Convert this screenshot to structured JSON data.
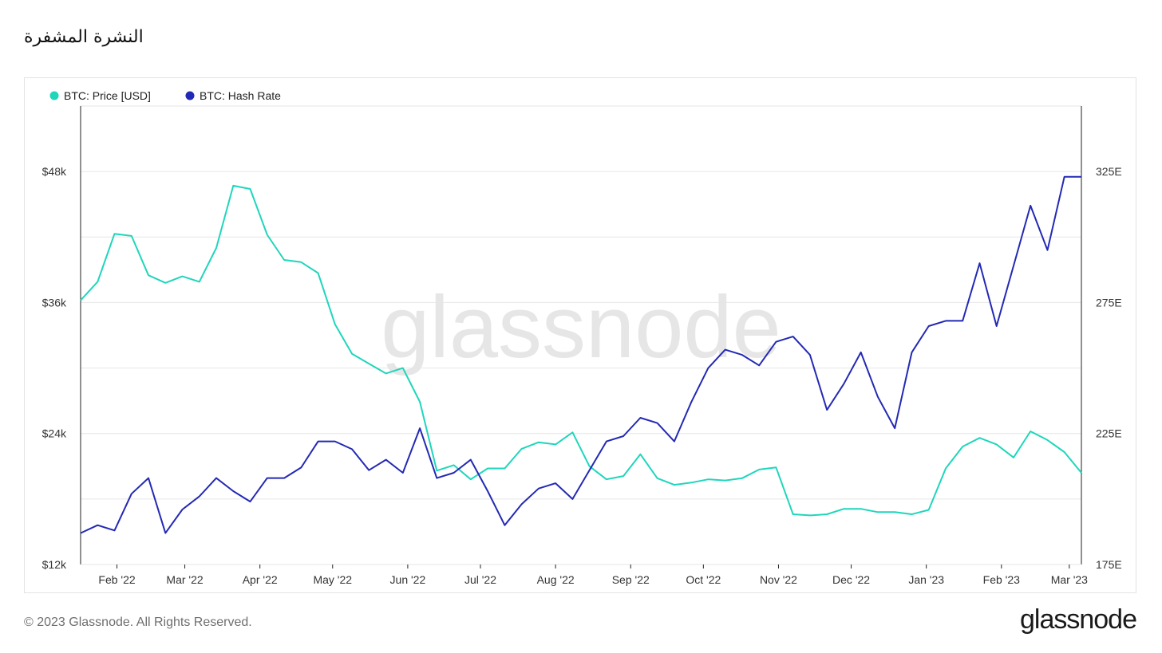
{
  "page": {
    "title": "النشرة المشفرة",
    "copyright": "© 2023 Glassnode. All Rights Reserved.",
    "logo_text": "glassnode",
    "watermark": "glassnode"
  },
  "colors": {
    "price": "#1fd6bb",
    "hash_rate": "#2329b4",
    "grid": "#e6e6e6",
    "axis": "#222222"
  },
  "chart_data": {
    "type": "line",
    "title": "",
    "legend_position": "top-left",
    "grid": true,
    "x_ticks": [
      "Feb '22",
      "Mar '22",
      "Apr '22",
      "May '22",
      "Jun '22",
      "Jul '22",
      "Aug '22",
      "Sep '22",
      "Oct '22",
      "Nov '22",
      "Dec '22",
      "Jan '23",
      "Feb '23",
      "Mar '23"
    ],
    "x_tick_dates": [
      "2022-02-01",
      "2022-03-01",
      "2022-04-01",
      "2022-05-01",
      "2022-06-01",
      "2022-07-01",
      "2022-08-01",
      "2022-09-01",
      "2022-10-01",
      "2022-11-01",
      "2022-12-01",
      "2023-01-01",
      "2023-02-01",
      "2023-03-01"
    ],
    "x_range": [
      "2022-01-17",
      "2023-03-06"
    ],
    "y_left": {
      "ticks": [
        12000,
        24000,
        36000,
        48000
      ],
      "tick_labels": [
        "$12k",
        "$24k",
        "$36k",
        "$48k"
      ],
      "range": [
        12000,
        54000
      ]
    },
    "y_right": {
      "ticks": [
        175,
        225,
        275,
        325
      ],
      "tick_labels": [
        "175E",
        "225E",
        "275E",
        "325E"
      ],
      "range": [
        175,
        350
      ]
    },
    "series": [
      {
        "name": "BTC: Price [USD]",
        "axis": "left",
        "color": "#1fd6bb",
        "dates": [
          "2022-01-17",
          "2022-01-24",
          "2022-01-31",
          "2022-02-07",
          "2022-02-14",
          "2022-02-21",
          "2022-02-28",
          "2022-03-07",
          "2022-03-14",
          "2022-03-21",
          "2022-03-28",
          "2022-04-04",
          "2022-04-11",
          "2022-04-18",
          "2022-04-25",
          "2022-05-02",
          "2022-05-09",
          "2022-05-16",
          "2022-05-23",
          "2022-05-30",
          "2022-06-06",
          "2022-06-13",
          "2022-06-20",
          "2022-06-27",
          "2022-07-04",
          "2022-07-11",
          "2022-07-18",
          "2022-07-25",
          "2022-08-01",
          "2022-08-08",
          "2022-08-15",
          "2022-08-22",
          "2022-08-29",
          "2022-09-05",
          "2022-09-12",
          "2022-09-19",
          "2022-09-26",
          "2022-10-03",
          "2022-10-10",
          "2022-10-17",
          "2022-10-24",
          "2022-10-31",
          "2022-11-07",
          "2022-11-14",
          "2022-11-21",
          "2022-11-28",
          "2022-12-05",
          "2022-12-12",
          "2022-12-19",
          "2022-12-26",
          "2023-01-02",
          "2023-01-09",
          "2023-01-16",
          "2023-01-23",
          "2023-01-30",
          "2023-02-06",
          "2023-02-13",
          "2023-02-20",
          "2023-02-27",
          "2023-03-06"
        ],
        "values": [
          36200,
          37900,
          42300,
          42100,
          38500,
          37800,
          38400,
          37900,
          41000,
          46700,
          46400,
          42200,
          39900,
          39700,
          38700,
          34000,
          31300,
          30400,
          29500,
          30000,
          26900,
          20600,
          21100,
          19800,
          20800,
          20800,
          22600,
          23200,
          23000,
          24100,
          21000,
          19800,
          20100,
          22100,
          19900,
          19300,
          19500,
          19800,
          19700,
          19900,
          20700,
          20900,
          16600,
          16500,
          16600,
          17100,
          17100,
          16800,
          16800,
          16600,
          17000,
          20800,
          22800,
          23600,
          23000,
          21800,
          24200,
          23400,
          22300,
          20400
        ]
      },
      {
        "name": "BTC: Hash Rate",
        "axis": "right",
        "color": "#2329b4",
        "dates": [
          "2022-01-17",
          "2022-01-24",
          "2022-01-31",
          "2022-02-07",
          "2022-02-14",
          "2022-02-21",
          "2022-02-28",
          "2022-03-07",
          "2022-03-14",
          "2022-03-21",
          "2022-03-28",
          "2022-04-04",
          "2022-04-11",
          "2022-04-18",
          "2022-04-25",
          "2022-05-02",
          "2022-05-09",
          "2022-05-16",
          "2022-05-23",
          "2022-05-30",
          "2022-06-06",
          "2022-06-13",
          "2022-06-20",
          "2022-06-27",
          "2022-07-04",
          "2022-07-11",
          "2022-07-18",
          "2022-07-25",
          "2022-08-01",
          "2022-08-08",
          "2022-08-15",
          "2022-08-22",
          "2022-08-29",
          "2022-09-05",
          "2022-09-12",
          "2022-09-19",
          "2022-09-26",
          "2022-10-03",
          "2022-10-10",
          "2022-10-17",
          "2022-10-24",
          "2022-10-31",
          "2022-11-07",
          "2022-11-14",
          "2022-11-21",
          "2022-11-28",
          "2022-12-05",
          "2022-12-12",
          "2022-12-19",
          "2022-12-26",
          "2023-01-02",
          "2023-01-09",
          "2023-01-16",
          "2023-01-23",
          "2023-01-30",
          "2023-02-06",
          "2023-02-13",
          "2023-02-20",
          "2023-02-27",
          "2023-03-06"
        ],
        "values": [
          187,
          190,
          188,
          202,
          208,
          187,
          196,
          201,
          208,
          203,
          199,
          208,
          208,
          212,
          222,
          222,
          219,
          211,
          215,
          210,
          227,
          208,
          210,
          215,
          203,
          190,
          198,
          204,
          206,
          200,
          211,
          222,
          224,
          231,
          229,
          222,
          237,
          250,
          257,
          255,
          251,
          260,
          262,
          255,
          234,
          244,
          256,
          239,
          227,
          256,
          266,
          268,
          268,
          290,
          266,
          289,
          312,
          295,
          323,
          323
        ]
      }
    ]
  }
}
